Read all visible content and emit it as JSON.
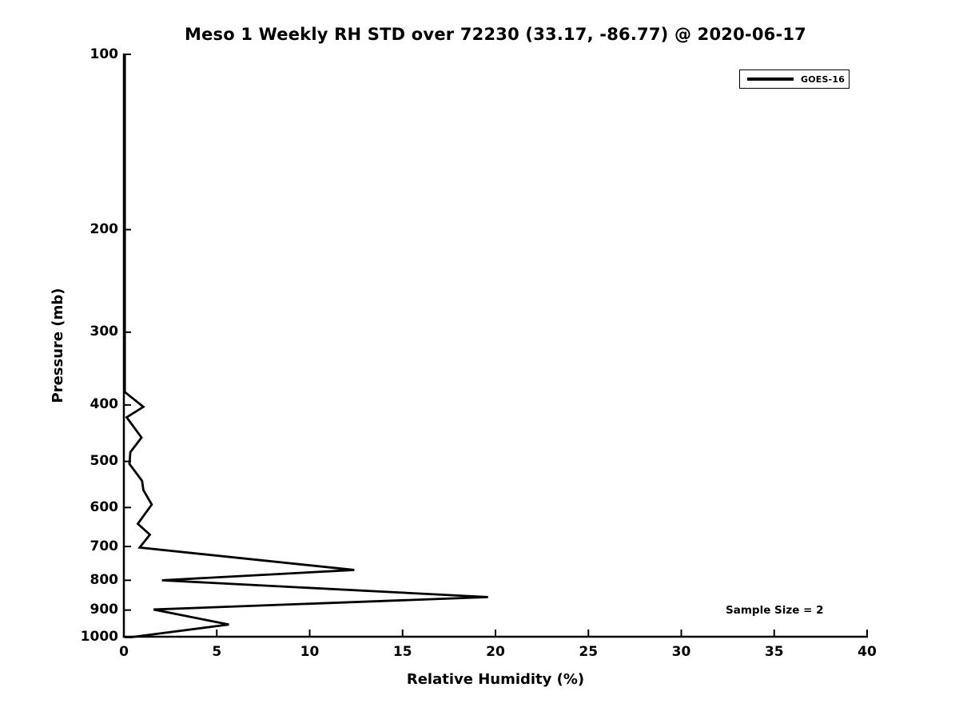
{
  "chart_data": {
    "type": "line",
    "title": "Meso 1 Weekly RH STD over 72230 (33.17, -86.77) @ 2020-06-17",
    "xlabel": "Relative Humidity (%)",
    "ylabel": "Pressure (mb)",
    "annotation": "Sample Size = 2",
    "xlim": [
      0,
      40
    ],
    "x_ticks": [
      0,
      5,
      10,
      15,
      20,
      25,
      30,
      35,
      40
    ],
    "ylim": [
      1000,
      100
    ],
    "y_scale": "log",
    "y_ticks": [
      100,
      200,
      300,
      400,
      500,
      600,
      700,
      800,
      900,
      1000
    ],
    "grid": false,
    "legend": {
      "position": "upper right",
      "entries": [
        "GOES-16"
      ]
    },
    "axis_color": "#000000",
    "line_color": "#000000",
    "series": [
      {
        "name": "GOES-16",
        "color": "#000000",
        "points_format": "[pressure_mb, rh_std_percent]",
        "points": [
          [
            100,
            0.05
          ],
          [
            150,
            0.05
          ],
          [
            200,
            0.05
          ],
          [
            250,
            0.05
          ],
          [
            300,
            0.05
          ],
          [
            350,
            0.05
          ],
          [
            380,
            0.05
          ],
          [
            403,
            1.05
          ],
          [
            420,
            0.15
          ],
          [
            455,
            0.95
          ],
          [
            482,
            0.35
          ],
          [
            505,
            0.3
          ],
          [
            540,
            0.98
          ],
          [
            560,
            1.05
          ],
          [
            593,
            1.5
          ],
          [
            640,
            0.75
          ],
          [
            668,
            1.4
          ],
          [
            703,
            0.85
          ],
          [
            768,
            12.4
          ],
          [
            800,
            2.05
          ],
          [
            855,
            19.6
          ],
          [
            898,
            1.6
          ],
          [
            953,
            5.65
          ],
          [
            1005,
            0.05
          ]
        ]
      }
    ]
  }
}
